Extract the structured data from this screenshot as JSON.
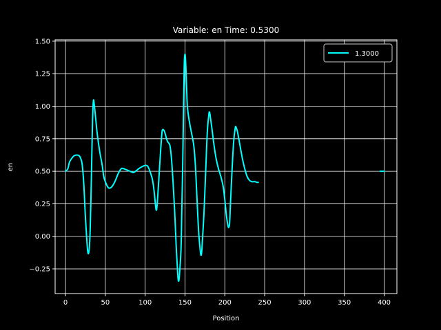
{
  "chart_data": {
    "type": "line",
    "title": "Variable: en Time: 0.5300",
    "xlabel": "Position",
    "ylabel": "en",
    "xlim": [
      -13,
      416
    ],
    "ylim": [
      -0.44,
      1.51
    ],
    "x_ticks": [
      0,
      50,
      100,
      150,
      200,
      250,
      300,
      350,
      400
    ],
    "x_tick_labels": [
      "0",
      "50",
      "100",
      "150",
      "200",
      "250",
      "300",
      "350",
      "400"
    ],
    "y_ticks": [
      -0.25,
      0.0,
      0.25,
      0.5,
      0.75,
      1.0,
      1.25,
      1.5
    ],
    "y_tick_labels": [
      "−0.25",
      "0.00",
      "0.25",
      "0.50",
      "0.75",
      "1.00",
      "1.25",
      "1.50"
    ],
    "grid": true,
    "legend_position": "top-right",
    "colors": {
      "background": "#000000",
      "foreground": "#ffffff",
      "series": "#00ffff"
    },
    "series": [
      {
        "name": "1.3000",
        "segments": [
          [
            [
              0,
              0.5
            ],
            [
              3,
              0.52
            ],
            [
              5,
              0.57
            ],
            [
              8,
              0.6
            ],
            [
              11,
              0.62
            ],
            [
              14,
              0.625
            ],
            [
              17,
              0.62
            ],
            [
              19,
              0.6
            ],
            [
              21,
              0.55
            ],
            [
              23,
              0.4
            ],
            [
              25,
              0.15
            ],
            [
              27,
              -0.05
            ],
            [
              28,
              -0.12
            ],
            [
              29,
              -0.13
            ],
            [
              30,
              -0.08
            ],
            [
              31,
              0.05
            ],
            [
              32,
              0.3
            ],
            [
              33,
              0.6
            ],
            [
              34,
              0.9
            ],
            [
              35,
              1.04
            ],
            [
              36,
              1.02
            ],
            [
              38,
              0.9
            ],
            [
              40,
              0.78
            ],
            [
              43,
              0.65
            ],
            [
              46,
              0.55
            ],
            [
              48,
              0.46
            ],
            [
              50,
              0.42
            ],
            [
              53,
              0.38
            ],
            [
              55,
              0.37
            ],
            [
              58,
              0.38
            ],
            [
              62,
              0.42
            ],
            [
              66,
              0.48
            ],
            [
              70,
              0.52
            ],
            [
              73,
              0.52
            ],
            [
              77,
              0.51
            ],
            [
              81,
              0.5
            ],
            [
              85,
              0.49
            ],
            [
              88,
              0.5
            ],
            [
              92,
              0.52
            ],
            [
              96,
              0.535
            ],
            [
              100,
              0.545
            ],
            [
              103,
              0.54
            ],
            [
              106,
              0.5
            ],
            [
              109,
              0.44
            ],
            [
              111,
              0.36
            ],
            [
              113,
              0.24
            ],
            [
              114,
              0.2
            ],
            [
              115,
              0.24
            ],
            [
              117,
              0.42
            ],
            [
              119,
              0.62
            ],
            [
              121,
              0.79
            ],
            [
              122,
              0.82
            ],
            [
              124,
              0.81
            ],
            [
              126,
              0.77
            ],
            [
              128,
              0.73
            ],
            [
              131,
              0.7
            ],
            [
              133,
              0.6
            ],
            [
              135,
              0.42
            ],
            [
              137,
              0.2
            ],
            [
              139,
              -0.08
            ],
            [
              141,
              -0.3
            ],
            [
              142,
              -0.345
            ],
            [
              143,
              -0.3
            ],
            [
              145,
              -0.1
            ],
            [
              146,
              0.2
            ],
            [
              147,
              0.5
            ],
            [
              148,
              0.9
            ],
            [
              149,
              1.3
            ],
            [
              150,
              1.4
            ],
            [
              151,
              1.32
            ],
            [
              152,
              1.15
            ],
            [
              153,
              1.0
            ],
            [
              155,
              0.9
            ],
            [
              158,
              0.8
            ],
            [
              161,
              0.7
            ],
            [
              163,
              0.55
            ],
            [
              165,
              0.3
            ],
            [
              167,
              0.05
            ],
            [
              169,
              -0.1
            ],
            [
              170,
              -0.145
            ],
            [
              171,
              -0.12
            ],
            [
              172,
              -0.02
            ],
            [
              174,
              0.2
            ],
            [
              176,
              0.5
            ],
            [
              178,
              0.8
            ],
            [
              180,
              0.94
            ],
            [
              181,
              0.95
            ],
            [
              182,
              0.91
            ],
            [
              184,
              0.82
            ],
            [
              186,
              0.72
            ],
            [
              189,
              0.6
            ],
            [
              192,
              0.52
            ],
            [
              195,
              0.46
            ],
            [
              198,
              0.38
            ],
            [
              200,
              0.28
            ],
            [
              202,
              0.16
            ],
            [
              204,
              0.08
            ],
            [
              205,
              0.07
            ],
            [
              206,
              0.1
            ],
            [
              207,
              0.24
            ],
            [
              209,
              0.5
            ],
            [
              211,
              0.72
            ],
            [
              213,
              0.83
            ],
            [
              214,
              0.84
            ],
            [
              216,
              0.8
            ],
            [
              219,
              0.7
            ],
            [
              222,
              0.6
            ],
            [
              225,
              0.52
            ],
            [
              228,
              0.46
            ],
            [
              231,
              0.43
            ],
            [
              234,
              0.42
            ],
            [
              238,
              0.42
            ],
            [
              240,
              0.415
            ],
            [
              242,
              0.415
            ]
          ],
          [
            [
              395,
              0.5
            ],
            [
              400,
              0.5
            ]
          ]
        ]
      }
    ]
  }
}
